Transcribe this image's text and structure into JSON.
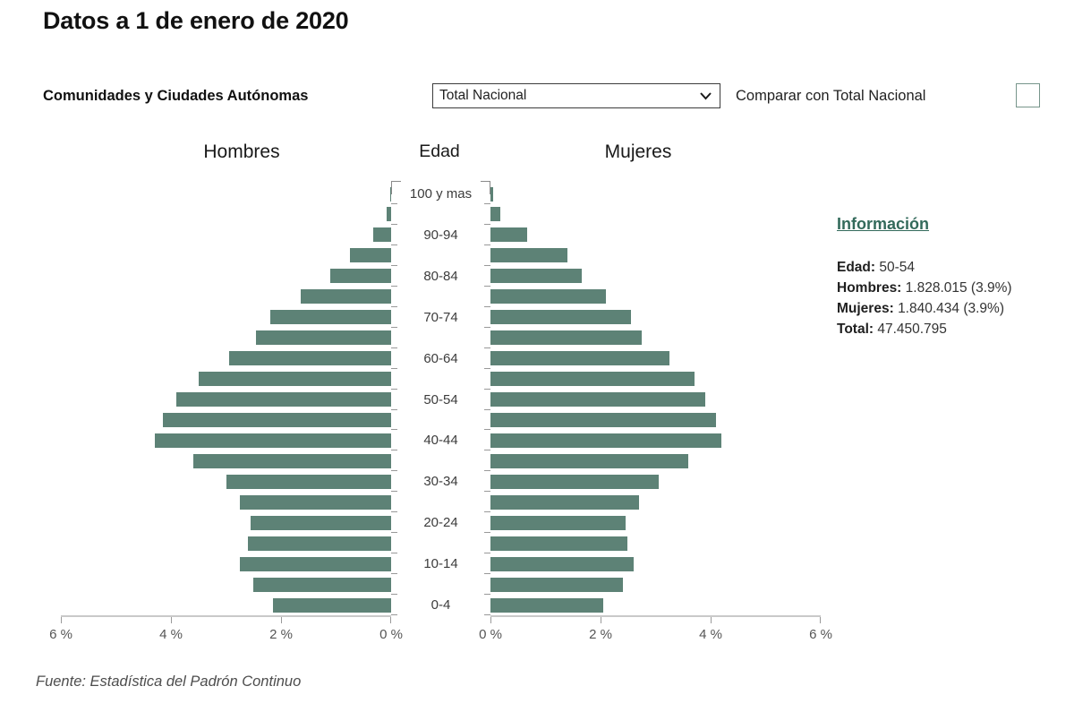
{
  "title": "Datos a 1 de enero de 2020",
  "controls": {
    "region_label": "Comunidades y Ciudades Autónomas",
    "region_selected": "Total Nacional",
    "compare_label": "Comparar con Total Nacional",
    "compare_checked": false
  },
  "pyramid_headers": {
    "left": "Hombres",
    "center": "Edad",
    "right": "Mujeres"
  },
  "info_panel": {
    "heading": "Información",
    "rows": [
      {
        "label": "Edad:",
        "value": "50-54"
      },
      {
        "label": "Hombres:",
        "value": "1.828.015 (3.9%)"
      },
      {
        "label": "Mujeres:",
        "value": "1.840.434 (3.9%)"
      },
      {
        "label": "Total:",
        "value": "47.450.795"
      }
    ]
  },
  "axes": {
    "left_tick_labels": [
      "6 %",
      "4 %",
      "2 %",
      "0 %"
    ],
    "right_tick_labels": [
      "0 %",
      "2 %",
      "4 %",
      "6 %"
    ]
  },
  "footer": "Fuente: Estadística del Padrón Continuo",
  "colors": {
    "bar": "#5d8276",
    "info_heading": "#336a5b",
    "axis_line": "#c9c9c9",
    "tick": "#999999"
  },
  "chart_data": {
    "type": "bar",
    "subtype": "population-pyramid",
    "title": "Pirámide de población, Total Nacional, 1 de enero de 2020",
    "unit": "percent_of_total_population",
    "xlim": [
      0,
      6
    ],
    "x_ticks": [
      0,
      2,
      4,
      6
    ],
    "categories": [
      "0-4",
      "5-9",
      "10-14",
      "15-19",
      "20-24",
      "25-29",
      "30-34",
      "35-39",
      "40-44",
      "45-49",
      "50-54",
      "55-59",
      "60-64",
      "65-69",
      "70-74",
      "75-79",
      "80-84",
      "85-89",
      "90-94",
      "95-99",
      "100 y mas"
    ],
    "series": [
      {
        "name": "Hombres",
        "side": "left",
        "values": [
          2.15,
          2.5,
          2.75,
          2.6,
          2.55,
          2.75,
          3.0,
          3.6,
          4.3,
          4.15,
          3.9,
          3.5,
          2.95,
          2.45,
          2.2,
          1.65,
          1.1,
          0.75,
          0.32,
          0.08,
          0.02
        ]
      },
      {
        "name": "Mujeres",
        "side": "right",
        "values": [
          2.05,
          2.4,
          2.6,
          2.48,
          2.45,
          2.7,
          3.05,
          3.6,
          4.2,
          4.1,
          3.9,
          3.7,
          3.25,
          2.75,
          2.55,
          2.1,
          1.65,
          1.4,
          0.67,
          0.18,
          0.05
        ]
      }
    ]
  }
}
